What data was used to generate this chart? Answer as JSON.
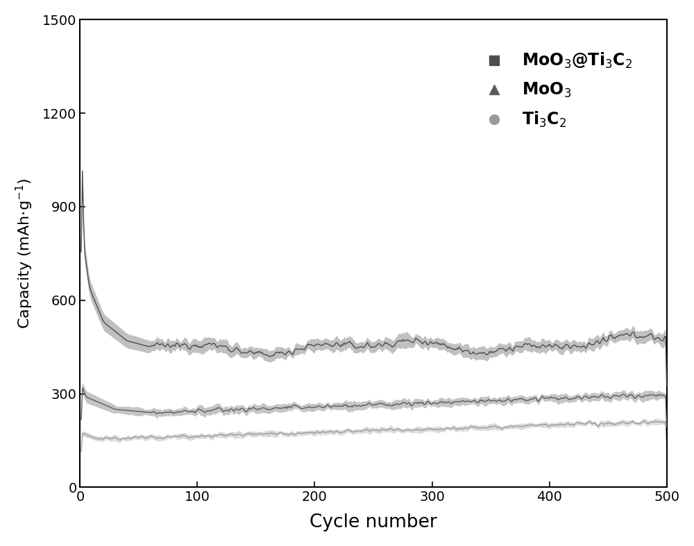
{
  "title": "",
  "xlabel": "Cycle number",
  "ylabel": "Capacity (mAh·g⁻¹)",
  "xlim": [
    0,
    500
  ],
  "ylim": [
    0,
    1500
  ],
  "yticks": [
    0,
    300,
    600,
    900,
    1200,
    1500
  ],
  "xticks": [
    0,
    100,
    200,
    300,
    400,
    500
  ],
  "background_color": "#ffffff",
  "color_moo3_ti3c2": "#4d4d4d",
  "color_moo3": "#5a5a5a",
  "color_ti3c2": "#999999",
  "figsize": [
    10.0,
    7.87
  ],
  "dpi": 100
}
